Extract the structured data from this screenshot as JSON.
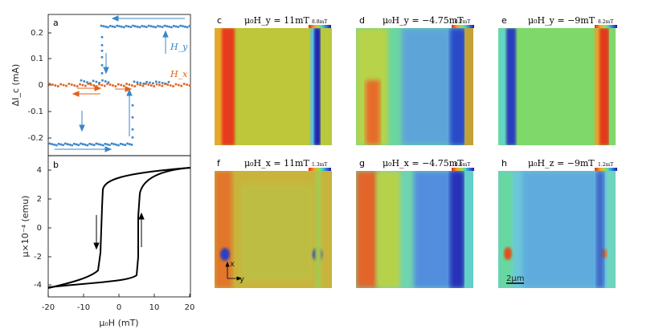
{
  "figure": {
    "panel_a": {
      "label": "a",
      "ylabel": "ΔI_c (mA)",
      "series_labels": {
        "hy": "H_y",
        "hx": "H_x"
      },
      "yticks": [
        "0.2",
        "0.1",
        "0",
        "-0.1",
        "-0.2"
      ]
    },
    "panel_b": {
      "label": "b",
      "ylabel": "μ×10⁻⁴ (emu)",
      "yticks": [
        "4",
        "2",
        "0",
        "-2",
        "-4"
      ],
      "xticks": [
        "-20",
        "-10",
        "0",
        "10",
        "20"
      ],
      "xlabel": "μ₀H (mT)"
    },
    "maps": [
      {
        "label": "c",
        "title": "μ₀H_y = 11mT",
        "scale": "8.8mT"
      },
      {
        "label": "d",
        "title": "μ₀H_y = −4.75mT",
        "scale": "0.7mT"
      },
      {
        "label": "e",
        "title": "μ₀H_y = −9mT",
        "scale": "8.2mT"
      },
      {
        "label": "f",
        "title": "μ₀H_x = 11mT",
        "scale": "1.3mT"
      },
      {
        "label": "g",
        "title": "μ₀H_x = −4.75mT",
        "scale": "0.6mT"
      },
      {
        "label": "h",
        "title": "μ₀H_z = −9mT",
        "scale": "1.2mT"
      }
    ],
    "axes_glyph": {
      "x": "x",
      "y": "y"
    },
    "scalebar": "2μm"
  },
  "colors": {
    "hy": "#3a86c8",
    "hx": "#e0621a",
    "loop": "#000000"
  }
}
